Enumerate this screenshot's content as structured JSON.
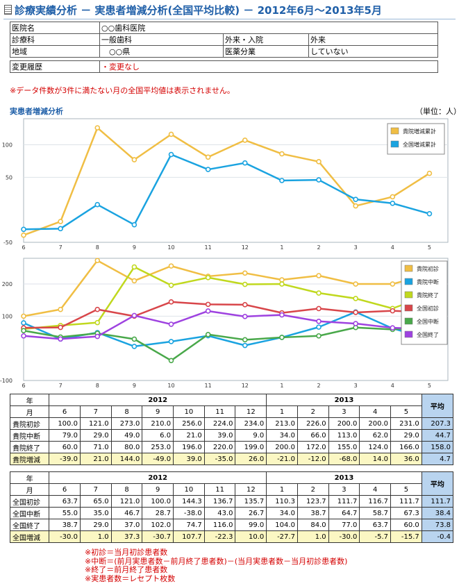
{
  "title": "診療実績分析 － 実患者増減分析(全国平均比較) － 2012年6月～2013年5月",
  "info": {
    "row1": {
      "label": "医院名",
      "value": "○○歯科医院"
    },
    "row2": {
      "label": "診療科",
      "value": "一般歯科",
      "label2": "外来・入院",
      "value2": "外来"
    },
    "row3": {
      "label": "地域",
      "value": "　○○県",
      "label2": "医薬分業",
      "value2": "していない"
    },
    "row4": {
      "label": "変更履歴",
      "value": "・変更なし"
    }
  },
  "notice": "※データ件数が3件に満たない月の全国平均値は表示されません。",
  "section_title": "実患者増減分析",
  "unit_label": "（単位：人）",
  "colors": {
    "orange": "#f0be44",
    "blue": "#1aa3e0",
    "lime": "#c0d81e",
    "red": "#d8464a",
    "green": "#49a84a",
    "purple": "#9e42e0"
  },
  "chart_data": [
    {
      "type": "line",
      "categories": [
        "6",
        "7",
        "8",
        "9",
        "10",
        "11",
        "12",
        "1",
        "2",
        "3",
        "4",
        "5"
      ],
      "ylim": [
        -50,
        140
      ],
      "yticks": [
        "100",
        "50",
        "-50"
      ],
      "legend_position": "top-right",
      "series": [
        {
          "name": "貴院増減累計",
          "color": "#f0be44",
          "values": [
            -39,
            -18,
            126,
            77,
            116,
            81,
            107,
            86,
            74,
            6,
            20,
            56
          ]
        },
        {
          "name": "全国増減累計",
          "color": "#1aa3e0",
          "values": [
            -30,
            -29,
            8,
            -23,
            85,
            62,
            72,
            45,
            46,
            16,
            10,
            -6
          ]
        }
      ]
    },
    {
      "type": "line",
      "categories": [
        "6",
        "7",
        "8",
        "9",
        "10",
        "11",
        "12",
        "1",
        "2",
        "3",
        "4",
        "5"
      ],
      "ylim": [
        -100,
        280
      ],
      "yticks": [
        "200",
        "100",
        "-100"
      ],
      "legend_position": "top-right",
      "series": [
        {
          "name": "貴院初診",
          "color": "#f0be44",
          "values": [
            100.0,
            121.0,
            273.0,
            210.0,
            256.0,
            224.0,
            234.0,
            213.0,
            226.0,
            200.0,
            200.0,
            231.0
          ]
        },
        {
          "name": "貴院中断",
          "color": "#1aa3e0",
          "values": [
            79.0,
            29.0,
            49.0,
            6.0,
            21.0,
            39.0,
            9.0,
            34.0,
            66.0,
            113.0,
            62.0,
            29.0
          ]
        },
        {
          "name": "貴院終了",
          "color": "#c0d81e",
          "values": [
            60.0,
            71.0,
            80.0,
            253.0,
            196.0,
            220.0,
            199.0,
            200.0,
            172.0,
            155.0,
            124.0,
            166.0
          ]
        },
        {
          "name": "全国初診",
          "color": "#d8464a",
          "values": [
            63.7,
            65.0,
            121.0,
            100.0,
            144.3,
            136.7,
            135.7,
            110.3,
            123.7,
            111.7,
            116.7,
            111.7
          ]
        },
        {
          "name": "全国中断",
          "color": "#49a84a",
          "values": [
            55.0,
            35.0,
            46.7,
            28.7,
            -38.0,
            43.0,
            26.7,
            34.0,
            38.7,
            64.7,
            58.7,
            67.3
          ]
        },
        {
          "name": "全国終了",
          "color": "#9e42e0",
          "values": [
            38.7,
            29.0,
            37.0,
            102.0,
            74.7,
            116.0,
            99.0,
            104.0,
            84.0,
            77.0,
            63.7,
            60.0
          ]
        }
      ]
    }
  ],
  "table_own": {
    "year_label": "年",
    "month_label": "月",
    "year1": "2012",
    "year2": "2013",
    "avg_label": "平均",
    "months": [
      "6",
      "7",
      "8",
      "9",
      "10",
      "11",
      "12",
      "1",
      "2",
      "3",
      "4",
      "5"
    ],
    "rows": [
      {
        "label": "貴院初診",
        "cells": [
          "100.0",
          "121.0",
          "273.0",
          "210.0",
          "256.0",
          "224.0",
          "234.0",
          "213.0",
          "226.0",
          "200.0",
          "200.0",
          "231.0"
        ],
        "avg": "207.3"
      },
      {
        "label": "貴院中断",
        "cells": [
          "79.0",
          "29.0",
          "49.0",
          "6.0",
          "21.0",
          "39.0",
          "9.0",
          "34.0",
          "66.0",
          "113.0",
          "62.0",
          "29.0"
        ],
        "avg": "44.7"
      },
      {
        "label": "貴院終了",
        "cells": [
          "60.0",
          "71.0",
          "80.0",
          "253.0",
          "196.0",
          "220.0",
          "199.0",
          "200.0",
          "172.0",
          "155.0",
          "124.0",
          "166.0"
        ],
        "avg": "158.0"
      },
      {
        "label": "貴院増減",
        "cells": [
          "-39.0",
          "21.0",
          "144.0",
          "-49.0",
          "39.0",
          "-35.0",
          "26.0",
          "-21.0",
          "-12.0",
          "-68.0",
          "14.0",
          "36.0"
        ],
        "avg": "4.7"
      }
    ]
  },
  "table_nat": {
    "year_label": "年",
    "month_label": "月",
    "year1": "2012",
    "year2": "2013",
    "avg_label": "平均",
    "months": [
      "6",
      "7",
      "8",
      "9",
      "10",
      "11",
      "12",
      "1",
      "2",
      "3",
      "4",
      "5"
    ],
    "rows": [
      {
        "label": "全国初診",
        "cells": [
          "63.7",
          "65.0",
          "121.0",
          "100.0",
          "144.3",
          "136.7",
          "135.7",
          "110.3",
          "123.7",
          "111.7",
          "116.7",
          "111.7"
        ],
        "avg": "111.7"
      },
      {
        "label": "全国中断",
        "cells": [
          "55.0",
          "35.0",
          "46.7",
          "28.7",
          "-38.0",
          "43.0",
          "26.7",
          "34.0",
          "38.7",
          "64.7",
          "58.7",
          "67.3"
        ],
        "avg": "38.4"
      },
      {
        "label": "全国終了",
        "cells": [
          "38.7",
          "29.0",
          "37.0",
          "102.0",
          "74.7",
          "116.0",
          "99.0",
          "104.0",
          "84.0",
          "77.0",
          "63.7",
          "60.0"
        ],
        "avg": "73.8"
      },
      {
        "label": "全国増減",
        "cells": [
          "-30.0",
          "1.0",
          "37.3",
          "-30.7",
          "107.7",
          "-22.3",
          "10.0",
          "-27.7",
          "1.0",
          "-30.0",
          "-5.7",
          "-15.7"
        ],
        "avg": "-0.4"
      }
    ]
  },
  "footnotes": [
    "※初診＝当月初診患者数",
    "※中断＝(前月実患者数－前月終了患者数)－(当月実患者数－当月初診患者数)",
    "※終了＝前月終了患者数",
    "※実患者数＝レセプト枚数"
  ]
}
